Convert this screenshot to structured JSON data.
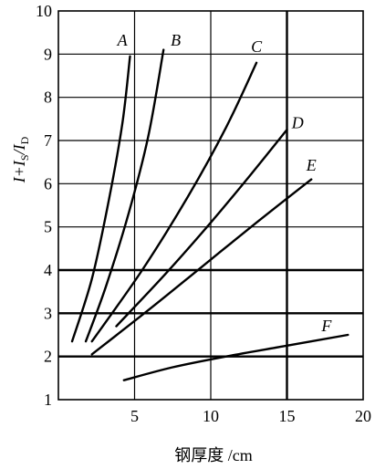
{
  "chart_data": {
    "type": "line",
    "title": "",
    "xlabel": "钢厚度 /cm",
    "ylabel_parts": {
      "prefix": "I+I",
      "sub1": "S",
      "mid": "/I",
      "sub2": "D"
    },
    "xlim": [
      0,
      20
    ],
    "ylim": [
      1,
      10
    ],
    "x_ticks": [
      5,
      10,
      15,
      20
    ],
    "y_ticks": [
      1,
      2,
      3,
      4,
      5,
      6,
      7,
      8,
      9,
      10
    ],
    "x_tick_labels": [
      "5",
      "10",
      "15",
      "20"
    ],
    "y_tick_labels": [
      "1",
      "2",
      "3",
      "4",
      "5",
      "6",
      "7",
      "8",
      "9",
      "10"
    ],
    "grid": true,
    "thick_gridlines": {
      "x": [
        15
      ],
      "y": [
        2,
        3,
        4
      ]
    },
    "series": [
      {
        "name": "A",
        "x": [
          0.9,
          2.2,
          3.3,
          4.2,
          4.7
        ],
        "y": [
          2.35,
          3.8,
          5.6,
          7.4,
          8.95
        ]
      },
      {
        "name": "B",
        "x": [
          1.8,
          3.1,
          4.6,
          5.9,
          6.9
        ],
        "y": [
          2.35,
          3.6,
          5.3,
          7.1,
          9.1
        ]
      },
      {
        "name": "C",
        "x": [
          2.2,
          5.5,
          8.5,
          11.0,
          13.0
        ],
        "y": [
          2.35,
          4.0,
          5.7,
          7.3,
          8.8
        ]
      },
      {
        "name": "D",
        "x": [
          3.8,
          7.0,
          10.0,
          12.6,
          15.0
        ],
        "y": [
          2.7,
          3.9,
          5.1,
          6.2,
          7.25
        ]
      },
      {
        "name": "E",
        "x": [
          2.2,
          6.0,
          9.5,
          13.0,
          16.6
        ],
        "y": [
          2.05,
          3.1,
          4.1,
          5.1,
          6.1
        ]
      },
      {
        "name": "F",
        "x": [
          4.3,
          7.5,
          11.0,
          15.0,
          19.0
        ],
        "y": [
          1.45,
          1.75,
          2.0,
          2.25,
          2.5
        ]
      }
    ],
    "series_label_anchor": [
      {
        "name": "A",
        "x": 4.2,
        "y": 9.2
      },
      {
        "name": "B",
        "x": 7.7,
        "y": 9.2
      },
      {
        "name": "C",
        "x": 13.0,
        "y": 9.05
      },
      {
        "name": "D",
        "x": 15.7,
        "y": 7.28
      },
      {
        "name": "E",
        "x": 16.6,
        "y": 6.3
      },
      {
        "name": "F",
        "x": 17.6,
        "y": 2.58
      }
    ]
  }
}
